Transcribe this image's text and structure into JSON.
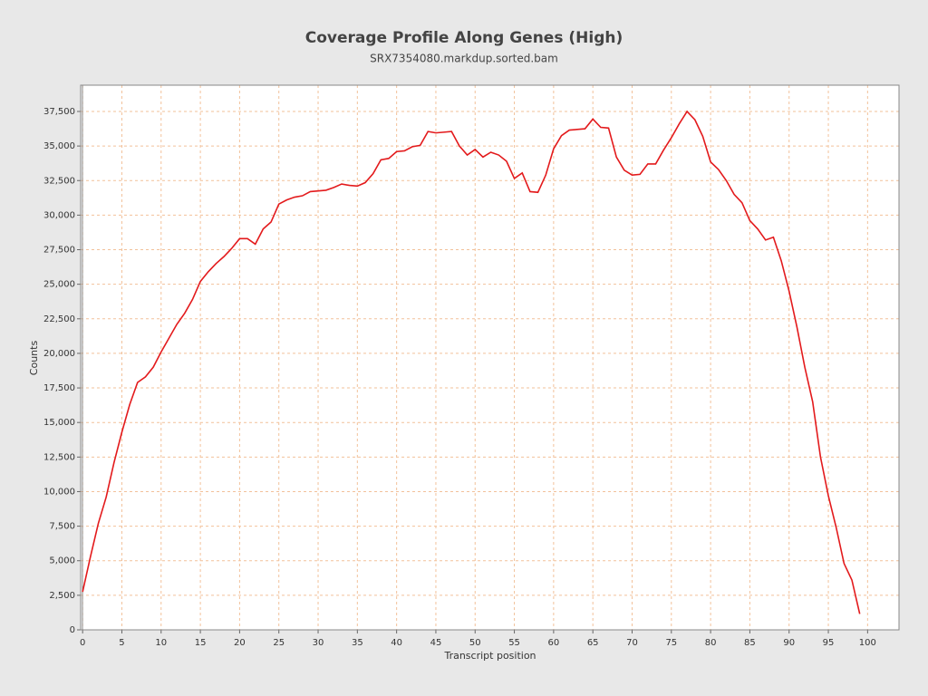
{
  "chart_data": {
    "type": "line",
    "title": "Coverage Profile Along Genes (High)",
    "subtitle": "SRX7354080.markdup.sorted.bam",
    "x_label": "Transcript position",
    "y_label": "Counts",
    "color": "#e31a1c",
    "grid": true,
    "x": [
      0,
      1,
      2,
      3,
      4,
      5,
      6,
      7,
      8,
      9,
      10,
      11,
      12,
      13,
      14,
      15,
      16,
      17,
      18,
      19,
      20,
      21,
      22,
      23,
      24,
      25,
      26,
      27,
      28,
      29,
      30,
      31,
      32,
      33,
      34,
      35,
      36,
      37,
      38,
      39,
      40,
      41,
      42,
      43,
      44,
      45,
      46,
      47,
      48,
      49,
      50,
      51,
      52,
      53,
      54,
      55,
      56,
      57,
      58,
      59,
      60,
      61,
      62,
      63,
      64,
      65,
      66,
      67,
      68,
      69,
      70,
      71,
      72,
      73,
      74,
      75,
      76,
      77,
      78,
      79,
      80,
      81,
      82,
      83,
      84,
      85,
      86,
      87,
      88,
      89,
      90,
      91,
      92,
      93,
      94,
      95,
      96,
      97,
      98,
      99
    ],
    "values": [
      2750,
      5300,
      7700,
      9600,
      12100,
      14300,
      16300,
      17900,
      18300,
      19000,
      20100,
      21100,
      22100,
      22900,
      23900,
      25200,
      25900,
      26500,
      27000,
      27600,
      28300,
      28300,
      27900,
      29000,
      29500,
      30800,
      31100,
      31300,
      31400,
      31700,
      31750,
      31800,
      32000,
      32250,
      32150,
      32100,
      32350,
      33000,
      34000,
      34100,
      34600,
      34650,
      34950,
      35050,
      36050,
      35950,
      36000,
      36050,
      35000,
      34350,
      34750,
      34200,
      34550,
      34350,
      33900,
      32650,
      33050,
      31700,
      31650,
      32900,
      34800,
      35750,
      36150,
      36200,
      36250,
      36950,
      36350,
      36300,
      34200,
      33250,
      32900,
      32950,
      33700,
      33700,
      34700,
      35600,
      36600,
      37500,
      36900,
      35700,
      33850,
      33300,
      32500,
      31500,
      30900,
      29600,
      29000,
      28200,
      28400,
      26700,
      24500,
      21900,
      19000,
      16500,
      12500,
      9700,
      7400,
      4800,
      3600,
      1150
    ],
    "xlim": [
      -0.25,
      104
    ],
    "xticks": [
      0,
      5,
      10,
      15,
      20,
      25,
      30,
      35,
      40,
      45,
      50,
      55,
      60,
      65,
      70,
      75,
      80,
      85,
      90,
      95,
      100
    ],
    "ylim": [
      0,
      39400
    ],
    "yticks": [
      0,
      {
        "value": 2500,
        "label": "2,500"
      },
      {
        "value": 5000,
        "label": "5,000"
      },
      {
        "value": 7500,
        "label": "7,500"
      },
      {
        "value": 10000,
        "label": "10,000"
      },
      {
        "value": 12500,
        "label": "12,500"
      },
      {
        "value": 15000,
        "label": "15,000"
      },
      {
        "value": 17500,
        "label": "17,500"
      },
      {
        "value": 20000,
        "label": "20,000"
      },
      {
        "value": 22500,
        "label": "22,500"
      },
      {
        "value": 25000,
        "label": "25,000"
      },
      {
        "value": 27500,
        "label": "27,500"
      },
      {
        "value": 30000,
        "label": "30,000"
      },
      {
        "value": 32500,
        "label": "32,500"
      },
      {
        "value": 35000,
        "label": "35,000"
      },
      {
        "value": 37500,
        "label": "37,500"
      }
    ]
  }
}
